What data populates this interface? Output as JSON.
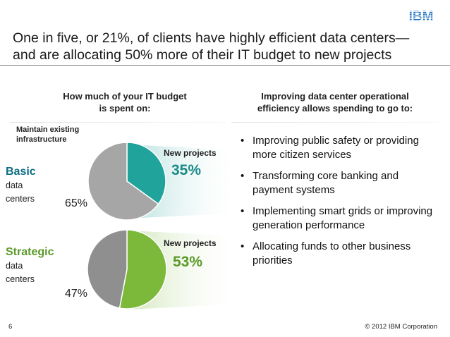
{
  "brand": {
    "logo_text": "IBM",
    "logo_color": "#1f70c1"
  },
  "title": {
    "line1": "One in five, or 21%, of clients have highly efficient data centers—",
    "line2": "and are allocating 50% more of their IT budget to new projects"
  },
  "left_panel": {
    "heading_line1": "How much of your IT budget",
    "heading_line2": "is spent on:",
    "maintain_line1": "Maintain existing",
    "maintain_line2": "infrastructure"
  },
  "right_panel": {
    "heading_line1": "Improving data center operational",
    "heading_line2": "efficiency allows spending to go to:",
    "bullets": [
      "Improving public safety or providing more citizen services",
      "Transforming core banking and payment systems",
      "Implementing smart grids or improving generation performance",
      "Allocating funds to other business priorities"
    ],
    "bullet_char": "•"
  },
  "chart_data": [
    {
      "type": "pie",
      "row_label": "Basic",
      "row_sublabel_1": "data",
      "row_sublabel_2": "centers",
      "slices": [
        {
          "label": "New projects",
          "value": 35,
          "display": "35%",
          "color": "#1fa39a"
        },
        {
          "label": "Maintain existing infrastructure",
          "value": 65,
          "display": "65%",
          "color": "#a6a6a6"
        }
      ]
    },
    {
      "type": "pie",
      "row_label": "Strategic",
      "row_sublabel_1": "data",
      "row_sublabel_2": "centers",
      "slices": [
        {
          "label": "New projects",
          "value": 53,
          "display": "53%",
          "color": "#7cb83a"
        },
        {
          "label": "Maintain existing infrastructure",
          "value": 47,
          "display": "47%",
          "color": "#8f8f8f"
        }
      ]
    }
  ],
  "colors": {
    "basic_accent": "#0e6e84",
    "strategic_accent": "#5b9a2a"
  },
  "footer": {
    "page_number": "6",
    "copyright": "© 2012 IBM Corporation"
  }
}
